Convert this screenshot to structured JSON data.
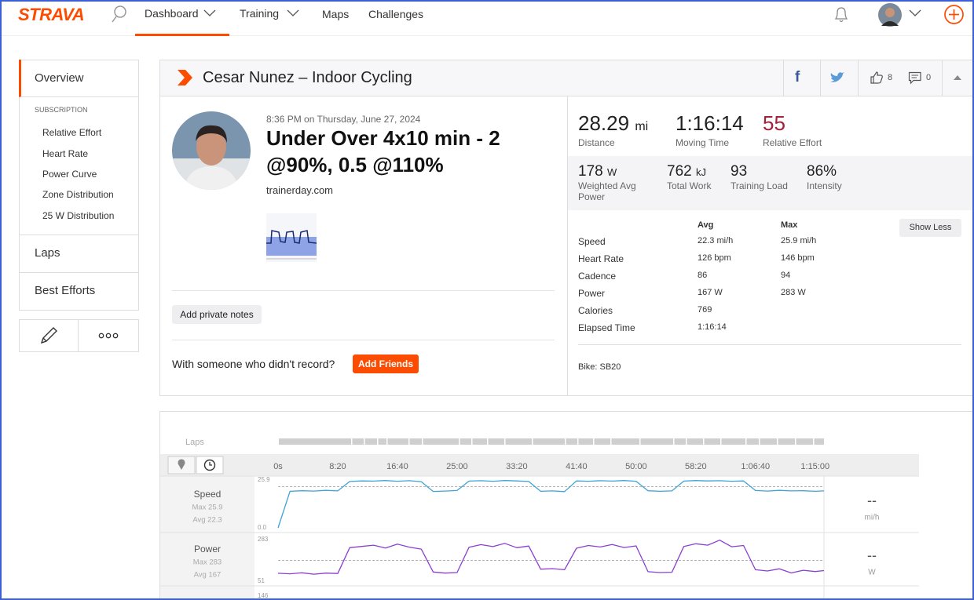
{
  "nav": {
    "logo": "STRAVA",
    "items": [
      "Dashboard",
      "Training",
      "Maps",
      "Challenges"
    ]
  },
  "sidebar": {
    "overview": "Overview",
    "section": "SUBSCRIPTION",
    "links": [
      "Relative Effort",
      "Heart Rate",
      "Power Curve",
      "Zone Distribution",
      "25 W Distribution"
    ],
    "laps": "Laps",
    "best_efforts": "Best Efforts"
  },
  "activity": {
    "header": "Cesar Nunez – Indoor Cycling",
    "kudos": 8,
    "comments": 0,
    "date": "8:36 PM on Thursday, June 27, 2024",
    "title": "Under Over 4x10 min - 2 @90%, 0.5 @110%",
    "description": "trainerday.com",
    "notes_button": "Add private notes",
    "friends_prompt": "With someone who didn't record?",
    "friends_button": "Add Friends"
  },
  "stats": {
    "primary": [
      {
        "value": 28.29,
        "unit": "mi",
        "label": "Distance"
      },
      {
        "value": "1:16:14",
        "label": "Moving Time"
      },
      {
        "value": 55,
        "label": "Relative Effort"
      }
    ],
    "secondary": [
      {
        "value": 178,
        "unit": "W",
        "label": "Weighted Avg Power"
      },
      {
        "value": 762,
        "unit": "kJ",
        "label": "Total Work"
      },
      {
        "value": 93,
        "label": "Training Load"
      },
      {
        "value": 86,
        "unit": "%",
        "label": "Intensity"
      }
    ]
  },
  "details": {
    "headers": [
      "Avg",
      "Max"
    ],
    "rows": [
      [
        "Speed",
        "22.3 mi/h",
        "25.9 mi/h"
      ],
      [
        "Heart Rate",
        "126 bpm",
        "146 bpm"
      ],
      [
        "Cadence",
        "86",
        "94"
      ],
      [
        "Power",
        "167 W",
        "283 W"
      ],
      [
        "Calories",
        "769",
        ""
      ],
      [
        "Elapsed Time",
        "1:16:14",
        ""
      ]
    ],
    "show_less": "Show Less",
    "bike": "Bike: SB20"
  },
  "chart_data": {
    "type": "line",
    "laps_label": "Laps",
    "xlim": [
      0,
      4574
    ],
    "xticks": [
      {
        "value": 0,
        "label": "0s"
      },
      {
        "value": 500,
        "label": "8:20"
      },
      {
        "value": 1000,
        "label": "16:40"
      },
      {
        "value": 1500,
        "label": "25:00"
      },
      {
        "value": 2000,
        "label": "33:20"
      },
      {
        "value": 2500,
        "label": "41:40"
      },
      {
        "value": 3000,
        "label": "50:00"
      },
      {
        "value": 3500,
        "label": "58:20"
      },
      {
        "value": 4000,
        "label": "1:06:40"
      },
      {
        "value": 4500,
        "label": "1:15:00"
      }
    ],
    "x": [
      0,
      100,
      200,
      300,
      400,
      500,
      600,
      700,
      800,
      900,
      1000,
      1100,
      1200,
      1300,
      1400,
      1500,
      1600,
      1700,
      1800,
      1900,
      2000,
      2100,
      2200,
      2300,
      2400,
      2500,
      2600,
      2700,
      2800,
      2900,
      3000,
      3100,
      3200,
      3300,
      3400,
      3500,
      3600,
      3700,
      3800,
      3900,
      4000,
      4100,
      4200,
      4300,
      4400,
      4500,
      4574
    ],
    "series": [
      {
        "name": "Speed",
        "color": "#3ea3d8",
        "max_label": "Max 25.9",
        "avg": {
          "value": 22.3,
          "label": "Avg 22.3"
        },
        "readout": "--",
        "unit": "mi/h",
        "ylim": [
          0,
          25.9
        ],
        "yticks": [
          25.9,
          {
            "value": 0,
            "label": "0.0"
          }
        ],
        "values": [
          0.0,
          19.8,
          20.1,
          19.9,
          20.3,
          20.0,
          25.1,
          25.4,
          25.3,
          25.6,
          25.2,
          25.5,
          25.0,
          19.7,
          19.9,
          20.2,
          25.3,
          25.5,
          25.2,
          25.6,
          25.4,
          25.1,
          19.8,
          20.0,
          19.6,
          25.4,
          25.2,
          25.5,
          25.3,
          25.6,
          25.2,
          20.1,
          19.8,
          20.0,
          25.3,
          25.6,
          25.4,
          25.5,
          25.2,
          25.4,
          20.2,
          19.9,
          20.3,
          20.0,
          20.1,
          19.8,
          20.0
        ]
      },
      {
        "name": "Power",
        "color": "#8a3fd1",
        "max_label": "Max 283",
        "avg": {
          "value": 167,
          "label": "Avg 167"
        },
        "readout": "--",
        "unit": "W",
        "ylim": [
          51,
          283
        ],
        "yticks": [
          283,
          51
        ],
        "values": [
          95,
          92,
          98,
          90,
          96,
          94,
          238,
          245,
          252,
          236,
          258,
          241,
          230,
          102,
          96,
          99,
          240,
          255,
          244,
          262,
          238,
          247,
          118,
          121,
          115,
          235,
          250,
          242,
          256,
          239,
          248,
          104,
          99,
          101,
          245,
          260,
          252,
          280,
          243,
          250,
          115,
          108,
          120,
          97,
          112,
          105,
          110
        ]
      },
      {
        "yticks": [
          146
        ]
      }
    ]
  }
}
